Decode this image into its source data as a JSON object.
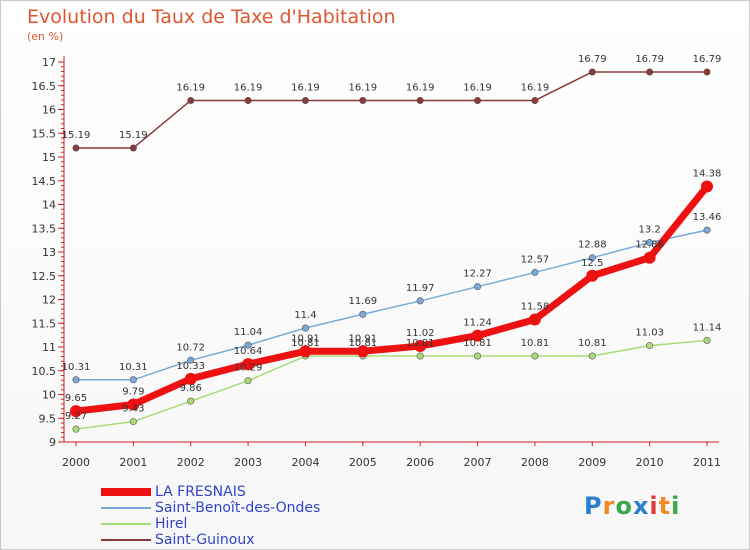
{
  "title": "Evolution du Taux de Taxe d'Habitation",
  "unit": "(en %)",
  "logo": {
    "text": "Proxiti",
    "colors": [
      "#2a7fd0",
      "#f08a24",
      "#3aa84a",
      "#2a7fd0",
      "#e03a3a",
      "#f08a24",
      "#3aa84a"
    ]
  },
  "colors": {
    "axis": "#cc2222",
    "grid_dot": "#cc2222"
  },
  "chart_data": {
    "type": "line",
    "title": "Evolution du Taux de Taxe d'Habitation",
    "ylabel": "(en %)",
    "xlabel": "",
    "x": [
      "2000",
      "2001",
      "2002",
      "2003",
      "2004",
      "2005",
      "2006",
      "2007",
      "2008",
      "2009",
      "2010",
      "2011"
    ],
    "ylim": [
      9,
      17
    ],
    "yticks": [
      "9",
      "9.5",
      "10",
      "10.5",
      "11",
      "11.5",
      "12",
      "12.5",
      "13",
      "13.5",
      "14",
      "14.5",
      "15",
      "15.5",
      "16",
      "16.5",
      "17"
    ],
    "legend_position": "bottom-left",
    "series": [
      {
        "name": "LA FRESNAIS",
        "color": "#ee1111",
        "width": 7,
        "marker": 6,
        "values": [
          9.65,
          9.79,
          10.33,
          10.64,
          10.91,
          10.91,
          11.02,
          11.24,
          11.58,
          12.5,
          12.88,
          14.38
        ],
        "labels": [
          "9.65",
          "9.79",
          "10.33",
          "10.64",
          "10.91",
          "10.91",
          "11.02",
          "11.24",
          "11.58",
          "12.5",
          "12.88",
          "14.38"
        ]
      },
      {
        "name": "Saint-Benoît-des-Ondes",
        "color": "#7aaad8",
        "width": 1.5,
        "marker": 3.2,
        "values": [
          10.31,
          10.31,
          10.72,
          11.04,
          11.4,
          11.69,
          11.97,
          12.27,
          12.57,
          12.88,
          13.2,
          13.46
        ],
        "labels": [
          "10.31",
          "10.31",
          "10.72",
          "11.04",
          "11.4",
          "11.69",
          "11.97",
          "12.27",
          "12.57",
          "12.88",
          "13.2",
          "13.46"
        ]
      },
      {
        "name": "Hirel",
        "color": "#a8dc78",
        "width": 1.5,
        "marker": 3.2,
        "values": [
          9.27,
          9.43,
          9.86,
          10.29,
          10.81,
          10.81,
          10.81,
          10.81,
          10.81,
          10.81,
          11.03,
          11.14
        ],
        "labels": [
          "9.27",
          "9.43",
          "9.86",
          "10.29",
          "10.81",
          "10.81",
          "10.81",
          "10.81",
          "10.81",
          "10.81",
          "11.03",
          "11.14"
        ]
      },
      {
        "name": "Saint-Guinoux",
        "color": "#8a3a3a",
        "width": 1.5,
        "marker": 3.2,
        "values": [
          15.19,
          15.19,
          16.19,
          16.19,
          16.19,
          16.19,
          16.19,
          16.19,
          16.19,
          16.79,
          16.79,
          16.79
        ],
        "labels": [
          "15.19",
          "15.19",
          "16.19",
          "16.19",
          "16.19",
          "16.19",
          "16.19",
          "16.19",
          "16.19",
          "16.79",
          "16.79",
          "16.79"
        ]
      }
    ]
  }
}
